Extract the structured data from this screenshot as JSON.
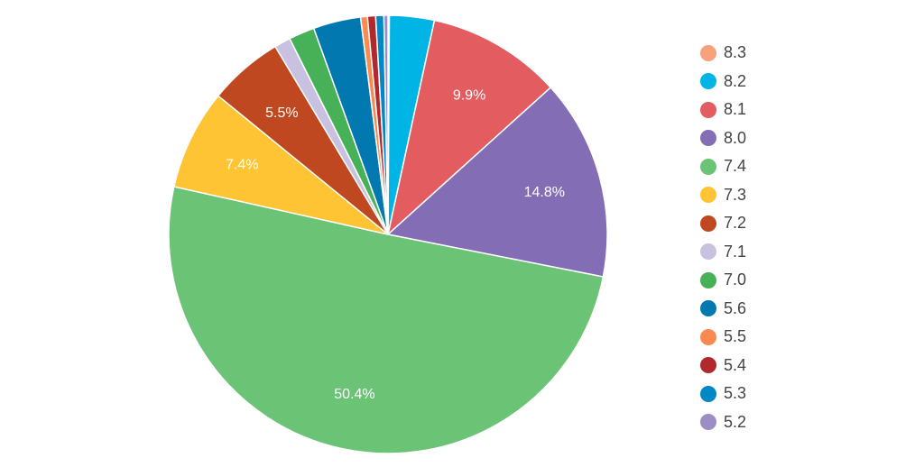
{
  "chart_data": {
    "type": "pie",
    "title": "",
    "legend_position": "right",
    "start_angle_deg": 0,
    "direction": "clockwise",
    "categories": [
      "8.3",
      "8.2",
      "8.1",
      "8.0",
      "7.4",
      "7.3",
      "7.2",
      "7.1",
      "7.0",
      "5.6",
      "5.5",
      "5.4",
      "5.3",
      "5.2"
    ],
    "values": [
      0.1,
      3.3,
      9.9,
      14.8,
      50.4,
      7.4,
      5.5,
      1.2,
      1.9,
      3.5,
      0.5,
      0.6,
      0.6,
      0.3
    ],
    "colors": [
      "#F7A27B",
      "#00B4E6",
      "#E25C60",
      "#836DB5",
      "#6BC375",
      "#FEC433",
      "#BF4820",
      "#C9C1E0",
      "#46B156",
      "#0179B0",
      "#FB8A52",
      "#B1292D",
      "#0089C5",
      "#9D8DC5"
    ],
    "data_labels": [
      {
        "category": "8.1",
        "text": "9.9%"
      },
      {
        "category": "8.0",
        "text": "14.8%"
      },
      {
        "category": "7.4",
        "text": "50.4%"
      },
      {
        "category": "7.3",
        "text": "7.4%"
      },
      {
        "category": "7.2",
        "text": "5.5%"
      }
    ],
    "label_threshold_pct": 5
  },
  "legend": {
    "items": [
      {
        "label": "8.3",
        "color": "#F7A27B"
      },
      {
        "label": "8.2",
        "color": "#00B4E6"
      },
      {
        "label": "8.1",
        "color": "#E25C60"
      },
      {
        "label": "8.0",
        "color": "#836DB5"
      },
      {
        "label": "7.4",
        "color": "#6BC375"
      },
      {
        "label": "7.3",
        "color": "#FEC433"
      },
      {
        "label": "7.2",
        "color": "#BF4820"
      },
      {
        "label": "7.1",
        "color": "#C9C1E0"
      },
      {
        "label": "7.0",
        "color": "#46B156"
      },
      {
        "label": "5.6",
        "color": "#0179B0"
      },
      {
        "label": "5.5",
        "color": "#FB8A52"
      },
      {
        "label": "5.4",
        "color": "#B1292D"
      },
      {
        "label": "5.3",
        "color": "#0089C5"
      },
      {
        "label": "5.2",
        "color": "#9D8DC5"
      }
    ]
  }
}
